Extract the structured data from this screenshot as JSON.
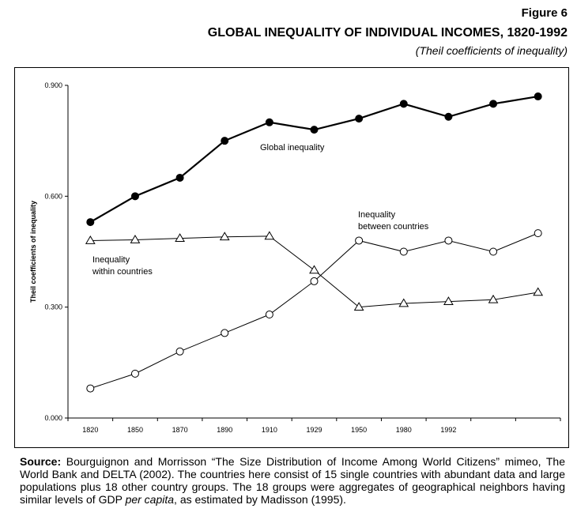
{
  "figure_label": "Figure 6",
  "title": "GLOBAL INEQUALITY OF INDIVIDUAL INCOMES, 1820-1992",
  "subtitle": "(Theil coefficients of inequality)",
  "source": {
    "label": "Source:",
    "text_before": "Bourguignon and Morrisson “The Size Distribution of Income Among World Citizens” mimeo, The World Bank and DELTA (2002). The countries here consist of 15 single countries with abundant data and large populations plus 18 other country groups. The 18 groups were aggregates of geographical neighbors having similar levels of GDP",
    "italic": "per capita",
    "text_after": ", as estimated by Madisson (1995)."
  },
  "chart_data": {
    "type": "line",
    "title": "",
    "xlabel": "",
    "ylabel": "Theil coefficients of inequality",
    "ylim": [
      0,
      0.9
    ],
    "y_ticks": [
      "0.000",
      "0.300",
      "0.600",
      "0.900"
    ],
    "x_tick_labels": [
      "1820",
      "1850",
      "1870",
      "1890",
      "1910",
      "1929",
      "1950",
      "1980",
      "1992",
      "",
      ""
    ],
    "series": [
      {
        "name": "Global inequality",
        "marker": "filled-circle",
        "values": [
          0.53,
          0.6,
          0.65,
          0.75,
          0.8,
          0.78,
          0.81,
          0.85,
          0.815,
          0.85,
          0.87
        ]
      },
      {
        "name": "Inequality between countries",
        "marker": "open-circle",
        "values": [
          0.08,
          0.12,
          0.18,
          0.23,
          0.28,
          0.37,
          0.48,
          0.45,
          0.48,
          0.45,
          0.5
        ]
      },
      {
        "name": "Inequality within countries",
        "marker": "open-triangle",
        "values": [
          0.48,
          0.482,
          0.486,
          0.49,
          0.492,
          0.4,
          0.3,
          0.31,
          0.315,
          0.32,
          0.34
        ]
      }
    ],
    "annotations": [
      {
        "series": "Global inequality",
        "lines": [
          "Global inequality"
        ]
      },
      {
        "series": "Inequality between countries",
        "lines": [
          "Inequality",
          "between countries"
        ]
      },
      {
        "series": "Inequality within countries",
        "lines": [
          "Inequality",
          "within countries"
        ]
      }
    ],
    "grid": false,
    "line_color": "#000000"
  }
}
